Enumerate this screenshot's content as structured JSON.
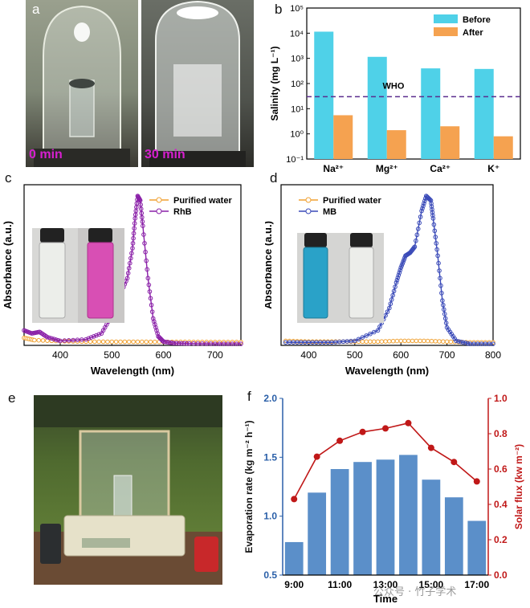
{
  "panels": {
    "a": {
      "label": "a",
      "photos": [
        {
          "caption": "0 min"
        },
        {
          "caption": "30 min"
        }
      ],
      "caption_color": "#d61fcf"
    },
    "e": {
      "label": "e"
    }
  },
  "watermark": "公众号 · 竹子学术",
  "chart_data": [
    {
      "panel": "b",
      "type": "bar",
      "categories": [
        "Na²⁺",
        "Mg²⁺",
        "Ca²⁺",
        "K⁺"
      ],
      "series": [
        {
          "name": "Before",
          "values": [
            11500,
            1150,
            400,
            380
          ],
          "color": "#4fd1e8"
        },
        {
          "name": "After",
          "values": [
            5.5,
            1.4,
            2.0,
            0.8
          ],
          "color": "#f5a250"
        }
      ],
      "yscale": "log",
      "ylim": [
        0.1,
        100000
      ],
      "yticks": [
        "10⁻¹",
        "10⁰",
        "10¹",
        "10²",
        "10³",
        "10⁴",
        "10⁵"
      ],
      "ylabel": "Salinity (mg L⁻¹)",
      "reference_line": {
        "label": "WHO",
        "value": 30,
        "color": "#5b2d8e"
      }
    },
    {
      "panel": "c",
      "type": "line",
      "xlabel": "Wavelength (nm)",
      "ylabel": "Absorbance (a.u.)",
      "xlim": [
        330,
        750
      ],
      "xticks": [
        "400",
        "500",
        "600",
        "700"
      ],
      "legend": [
        "Purified water",
        "RhB"
      ],
      "series": [
        {
          "name": "Purified water",
          "color": "#f0a030",
          "x": [
            330,
            350,
            400,
            450,
            500,
            550,
            600,
            650,
            700,
            750
          ],
          "y": [
            0.05,
            0.035,
            0.028,
            0.025,
            0.024,
            0.024,
            0.023,
            0.023,
            0.022,
            0.022
          ]
        },
        {
          "name": "RhB",
          "color": "#8a20a8",
          "x": [
            330,
            345,
            360,
            375,
            400,
            450,
            480,
            500,
            515,
            530,
            540,
            545,
            550,
            555,
            560,
            570,
            580,
            590,
            600,
            620,
            650,
            700,
            750
          ],
          "y": [
            0.1,
            0.08,
            0.09,
            0.055,
            0.03,
            0.04,
            0.08,
            0.2,
            0.33,
            0.45,
            0.65,
            0.85,
            1.0,
            0.97,
            0.8,
            0.45,
            0.18,
            0.06,
            0.025,
            0.015,
            0.012,
            0.01,
            0.01
          ]
        }
      ]
    },
    {
      "panel": "d",
      "type": "line",
      "xlabel": "Wavelength (nm)",
      "ylabel": "Absorbance (a.u.)",
      "xlim": [
        340,
        800
      ],
      "xticks": [
        "400",
        "500",
        "600",
        "700",
        "800"
      ],
      "legend": [
        "Purified water",
        "MB"
      ],
      "series": [
        {
          "name": "Purified water",
          "color": "#f0a030",
          "x": [
            350,
            400,
            450,
            500,
            550,
            600,
            650,
            700,
            750,
            800
          ],
          "y": [
            0.03,
            0.025,
            0.025,
            0.025,
            0.025,
            0.03,
            0.03,
            0.025,
            0.02,
            0.02
          ]
        },
        {
          "name": "MB",
          "color": "#3a4ab8",
          "x": [
            350,
            400,
            450,
            500,
            550,
            575,
            590,
            600,
            610,
            620,
            630,
            645,
            655,
            665,
            670,
            680,
            690,
            700,
            720,
            750,
            800
          ],
          "y": [
            0.02,
            0.02,
            0.02,
            0.03,
            0.1,
            0.25,
            0.42,
            0.52,
            0.6,
            0.62,
            0.66,
            0.9,
            1.0,
            0.97,
            0.85,
            0.6,
            0.3,
            0.12,
            0.03,
            0.01,
            0.01
          ]
        }
      ]
    },
    {
      "panel": "f",
      "type": "bar",
      "categories": [
        "9:00",
        "10:00",
        "11:00",
        "12:00",
        "13:00",
        "14:00",
        "15:00",
        "16:00",
        "17:00"
      ],
      "xticks": [
        "9:00",
        "11:00",
        "13:00",
        "15:00",
        "17:00"
      ],
      "xlabel": "Time",
      "ylabel": "Evaporation rate (kg m⁻² h⁻¹)",
      "ylim": [
        0.5,
        2.0
      ],
      "yticks": [
        "0.5",
        "1.0",
        "1.5",
        "2.0"
      ],
      "values": [
        0.78,
        1.2,
        1.4,
        1.46,
        1.48,
        1.52,
        1.31,
        1.16,
        0.96
      ],
      "bar_color": "#5b8fc9",
      "secondary": {
        "ylabel": "Solar flux (kw m⁻²)",
        "ylim": [
          0.0,
          1.0
        ],
        "yticks": [
          "0.0",
          "0.2",
          "0.4",
          "0.6",
          "0.8",
          "1.0"
        ],
        "values": [
          0.43,
          0.67,
          0.76,
          0.81,
          0.83,
          0.86,
          0.72,
          0.64,
          0.53
        ],
        "color": "#c01818"
      }
    }
  ]
}
